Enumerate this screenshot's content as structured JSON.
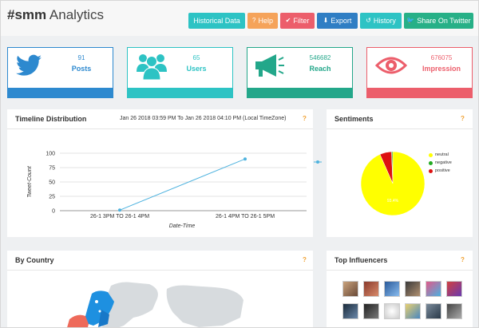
{
  "header": {
    "title_bold": "#smm",
    "title_rest": " Analytics",
    "buttons": [
      {
        "label": "Historical Data",
        "icon": "none",
        "color": "#2dc3c4"
      },
      {
        "label": "Help",
        "icon": "question-icon",
        "color": "#f5a35a"
      },
      {
        "label": "Filter",
        "icon": "check-icon",
        "color": "#ec5e6b"
      },
      {
        "label": "Export",
        "icon": "download-icon",
        "color": "#2f7ec4"
      },
      {
        "label": "History",
        "icon": "history-icon",
        "color": "#2dc3c4"
      },
      {
        "label": "Share On Twitter",
        "icon": "twitter-icon",
        "color": "#27b087"
      }
    ]
  },
  "stats": [
    {
      "value": "91",
      "label": "Posts",
      "icon": "twitter-bird-icon",
      "color": "#2d89cf"
    },
    {
      "value": "65",
      "label": "Users",
      "icon": "users-icon",
      "color": "#2dc3c4"
    },
    {
      "value": "546682",
      "label": "Reach",
      "icon": "megaphone-icon",
      "color": "#23a78a"
    },
    {
      "value": "676075",
      "label": "Impression",
      "icon": "eye-icon",
      "color": "#ec5e6b"
    }
  ],
  "timeline": {
    "title": "Timeline Distribution",
    "range": "Jan 26 2018 03:59 PM To Jan 26 2018 04:10 PM (Local TimeZone)",
    "help": "?"
  },
  "chart_data": {
    "type": "line",
    "categories": [
      "26-1 3PM TO 26-1 4PM",
      "26-1 4PM TO 26-1 5PM"
    ],
    "series": [
      {
        "values": [
          1,
          90
        ],
        "color": "#4fb3df"
      }
    ],
    "xlabel": "Date-Time",
    "ylabel": "Tweet-Count",
    "ylim": [
      0,
      100
    ],
    "yticks": [
      "0",
      "25",
      "50",
      "75",
      "100"
    ],
    "grid": true
  },
  "sentiments": {
    "title": "Sentiments",
    "help": "?",
    "chart_data": {
      "type": "pie",
      "labels": [
        "neutral",
        "negative",
        "positive"
      ],
      "values": [
        93.4,
        0.6,
        6.0
      ],
      "colors": [
        "#ffff00",
        "#22aa22",
        "#dd1111"
      ],
      "slice_label": "93.4%"
    }
  },
  "country": {
    "title": "By Country",
    "help": "?"
  },
  "influencers": {
    "title": "Top Influencers",
    "help": "?"
  }
}
